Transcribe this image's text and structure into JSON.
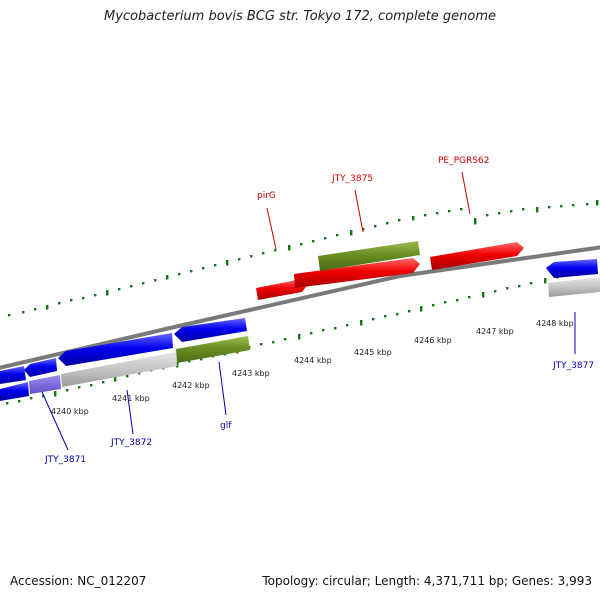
{
  "title": "Mycobacterium bovis BCG str. Tokyo 172, complete genome",
  "footer": {
    "accession": "Accession: NC_012207",
    "summary": "Topology: circular; Length: 4,371,711 bp; Genes: 3,993"
  },
  "colors": {
    "plus_strand": "#ee0000",
    "minus_strand": "#0000ee",
    "rna_like": "#6b8e23",
    "pseudo": "#bdbdbd",
    "axis": "#7a7a7a",
    "ticks": "#117711",
    "label_red": "#cc0000",
    "label_blue": "#0000aa"
  },
  "kbp_labels": [
    "4240 kbp",
    "4241 kbp",
    "4242 kbp",
    "4243 kbp",
    "4244 kbp",
    "4245 kbp",
    "4246 kbp",
    "4247 kbp",
    "4248 kbp"
  ],
  "gene_labels": {
    "pirG": "pirG",
    "jty3875": "JTY_3875",
    "pe_pgrs62": "PE_PGRS62",
    "jty3871": "JTY_3871",
    "jty3872": "JTY_3872",
    "glf": "glf",
    "jty3877": "JTY_3877"
  }
}
